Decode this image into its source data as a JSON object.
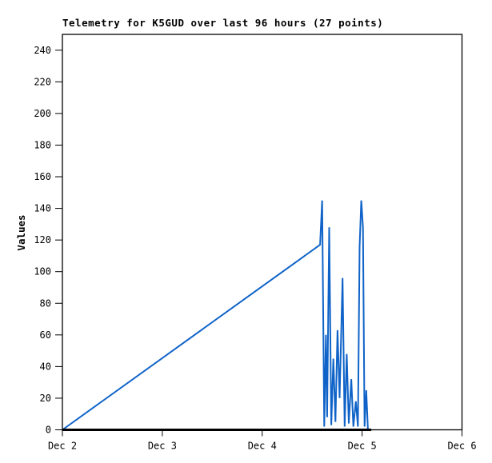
{
  "colors": {
    "background": "#ffffff",
    "line": "#0f63c8",
    "baseline": "#000000",
    "axis": "#000000",
    "text": "#000000"
  },
  "chart_data": {
    "type": "line",
    "title": "Telemetry for K5GUD over last 96 hours (27 points)",
    "xlabel": "",
    "ylabel": "Values",
    "point_count": 27,
    "grid": false,
    "legend": "none",
    "x_unit": "hours since Dec 2 00:00",
    "xlim_hours": [
      0,
      96
    ],
    "ylim": [
      0,
      250
    ],
    "y_ticks": [
      0,
      20,
      40,
      60,
      80,
      100,
      120,
      140,
      160,
      180,
      200,
      220,
      240
    ],
    "x_ticks": [
      {
        "hour": 0,
        "label": "Dec 2"
      },
      {
        "hour": 24,
        "label": "Dec 3"
      },
      {
        "hour": 48,
        "label": "Dec 4"
      },
      {
        "hour": 72,
        "label": "Dec 5"
      },
      {
        "hour": 96,
        "label": "Dec 6"
      }
    ],
    "series": [
      {
        "name": "telemetry-values",
        "color": "#0f63c8",
        "stroke_width": 2,
        "points": [
          [
            0.0,
            0
          ],
          [
            61.9,
            117
          ],
          [
            62.4,
            145
          ],
          [
            62.9,
            2
          ],
          [
            63.3,
            60
          ],
          [
            63.6,
            8
          ],
          [
            64.1,
            128
          ],
          [
            64.6,
            3
          ],
          [
            65.1,
            45
          ],
          [
            65.6,
            5
          ],
          [
            66.1,
            63
          ],
          [
            66.6,
            20
          ],
          [
            67.3,
            96
          ],
          [
            67.8,
            2
          ],
          [
            68.3,
            48
          ],
          [
            68.8,
            4
          ],
          [
            69.4,
            32
          ],
          [
            69.9,
            2
          ],
          [
            70.5,
            18
          ],
          [
            71.0,
            2
          ],
          [
            71.4,
            116
          ],
          [
            71.8,
            145
          ],
          [
            72.2,
            128
          ],
          [
            72.6,
            2
          ],
          [
            73.0,
            25
          ],
          [
            73.4,
            0
          ],
          [
            73.8,
            0
          ]
        ]
      },
      {
        "name": "zero-baseline",
        "color": "#000000",
        "stroke_width": 3,
        "points": [
          [
            0.0,
            0
          ],
          [
            74.2,
            0
          ]
        ]
      }
    ]
  }
}
